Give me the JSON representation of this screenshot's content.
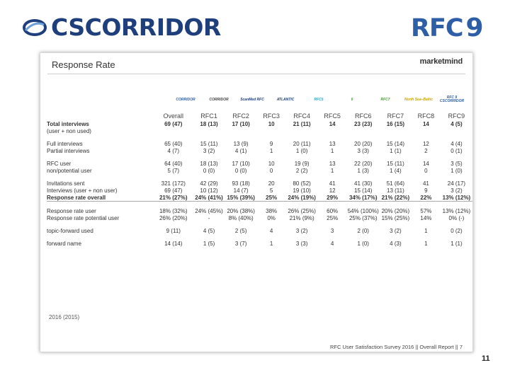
{
  "header": {
    "cs_logo_text": "CSCORRIDOR",
    "rfc_logo_text": "RFC",
    "rfc_logo_number": "9"
  },
  "slide": {
    "title": "Response Rate",
    "brand": "marketmind",
    "year_note": "2016 (2015)",
    "footer": "RFC User Satisfaction Survey 2016 || Overall Report || 7"
  },
  "corridor_logos": [
    {
      "name": "corridor-logo-rfc1",
      "text": "CORRIDOR",
      "color": "#2e5fa6"
    },
    {
      "name": "corridor-logo-rfc2",
      "text": "CORRIDOR",
      "color": "#444444"
    },
    {
      "name": "corridor-logo-rfc3",
      "text": "ScanMed RFC",
      "color": "#1e3f7c"
    },
    {
      "name": "corridor-logo-rfc4",
      "text": "ATLANTIC",
      "color": "#1e3f7c"
    },
    {
      "name": "corridor-logo-rfc5",
      "text": "RFC5",
      "color": "#2aa8c8"
    },
    {
      "name": "corridor-logo-rfc6",
      "text": "6",
      "color": "#4a9f3a"
    },
    {
      "name": "corridor-logo-rfc7",
      "text": "RFC7",
      "color": "#4a9f3a"
    },
    {
      "name": "corridor-logo-rfc8",
      "text": "North Sea–Baltic",
      "color": "#c9a400"
    },
    {
      "name": "corridor-logo-rfc9",
      "text": "RFC 9 CSCORRIDOR",
      "color": "#2e5fa6"
    }
  ],
  "table": {
    "columns": [
      "Overall",
      "RFC1",
      "RFC2",
      "RFC3",
      "RFC4",
      "RFC5",
      "RFC6",
      "RFC7",
      "RFC8",
      "RFC9"
    ],
    "rows": [
      {
        "label": "Total interviews",
        "bold": true,
        "values": [
          "69 (47)",
          "18 (13)",
          "17 (10)",
          "10",
          "21 (11)",
          "14",
          "23 (23)",
          "16 (15)",
          "14",
          "4 (5)"
        ]
      },
      {
        "label": "(user + non used)",
        "bold": false,
        "values": [
          "",
          "",
          "",
          "",
          "",
          "",
          "",
          "",
          "",
          ""
        ]
      },
      {
        "label": "",
        "gap": true,
        "values": [
          "",
          "",
          "",
          "",
          "",
          "",
          "",
          "",
          "",
          ""
        ]
      },
      {
        "label": "Full interviews",
        "bold": false,
        "values": [
          "65 (40)",
          "15 (11)",
          "13 (9)",
          "9",
          "20 (11)",
          "13",
          "20 (20)",
          "15 (14)",
          "12",
          "4 (4)"
        ]
      },
      {
        "label": "Partial interviews",
        "bold": false,
        "values": [
          "4 (7)",
          "3 (2)",
          "4 (1)",
          "1",
          "1 (0)",
          "1",
          "3 (3)",
          "1 (1)",
          "2",
          "0 (1)"
        ]
      },
      {
        "label": "",
        "gap": true,
        "values": [
          "",
          "",
          "",
          "",
          "",
          "",
          "",
          "",
          "",
          ""
        ]
      },
      {
        "label": "RFC user",
        "bold": false,
        "values": [
          "64 (40)",
          "18 (13)",
          "17 (10)",
          "10",
          "19 (9)",
          "13",
          "22 (20)",
          "15 (11)",
          "14",
          "3 (5)"
        ]
      },
      {
        "label": "non/potential user",
        "bold": false,
        "values": [
          "5 (7)",
          "0 (0)",
          "0 (0)",
          "0",
          "2 (2)",
          "1",
          "1 (3)",
          "1 (4)",
          "0",
          "1 (0)"
        ]
      },
      {
        "label": "",
        "gap": true,
        "values": [
          "",
          "",
          "",
          "",
          "",
          "",
          "",
          "",
          "",
          ""
        ]
      },
      {
        "label": "Invitations sent",
        "bold": false,
        "values": [
          "321 (172)",
          "42 (29)",
          "93 (18)",
          "20",
          "80 (52)",
          "41",
          "41 (30)",
          "51 (64)",
          "41",
          "24 (17)"
        ]
      },
      {
        "label": "Interviews (user + non user)",
        "bold": false,
        "values": [
          "69 (47)",
          "10 (12)",
          "14 (7)",
          "5",
          "19 (10)",
          "12",
          "15 (14)",
          "13 (11)",
          "9",
          "3 (2)"
        ]
      },
      {
        "label": "Response rate overall",
        "bold": true,
        "sep": true,
        "values": [
          "21% (27%)",
          "24% (41%)",
          "15% (39%)",
          "25%",
          "24% (19%)",
          "29%",
          "34% (17%)",
          "21% (22%)",
          "22%",
          "13% (12%)"
        ]
      },
      {
        "label": "",
        "gap": true,
        "values": [
          "",
          "",
          "",
          "",
          "",
          "",
          "",
          "",
          "",
          ""
        ]
      },
      {
        "label": "Response rate user",
        "bold": false,
        "values": [
          "18% (32%)",
          "24% (45%)",
          "20% (38%)",
          "38%",
          "26% (25%)",
          "60%",
          "54% (100%)",
          "20% (20%)",
          "57%",
          "13% (12%)"
        ]
      },
      {
        "label": "Response rate potential user",
        "bold": false,
        "values": [
          "26% (20%)",
          "-",
          "8% (40%)",
          "0%",
          "21% (9%)",
          "25%",
          "25% (37%)",
          "15% (25%)",
          "14%",
          "0% (-)"
        ]
      },
      {
        "label": "",
        "gap": true,
        "values": [
          "",
          "",
          "",
          "",
          "",
          "",
          "",
          "",
          "",
          ""
        ]
      },
      {
        "label": "topic-forward used",
        "bold": false,
        "values": [
          "9 (11)",
          "4 (5)",
          "2 (5)",
          "4",
          "3 (2)",
          "3",
          "2 (0)",
          "3 (2)",
          "1",
          "0 (2)"
        ]
      },
      {
        "label": "",
        "gap": true,
        "values": [
          "",
          "",
          "",
          "",
          "",
          "",
          "",
          "",
          "",
          ""
        ]
      },
      {
        "label": "forward name",
        "bold": false,
        "values": [
          "14 (14)",
          "1 (5)",
          "3 (7)",
          "1",
          "3 (3)",
          "4",
          "1 (0)",
          "4 (3)",
          "1",
          "1 (1)"
        ]
      }
    ]
  },
  "page_number": "11"
}
